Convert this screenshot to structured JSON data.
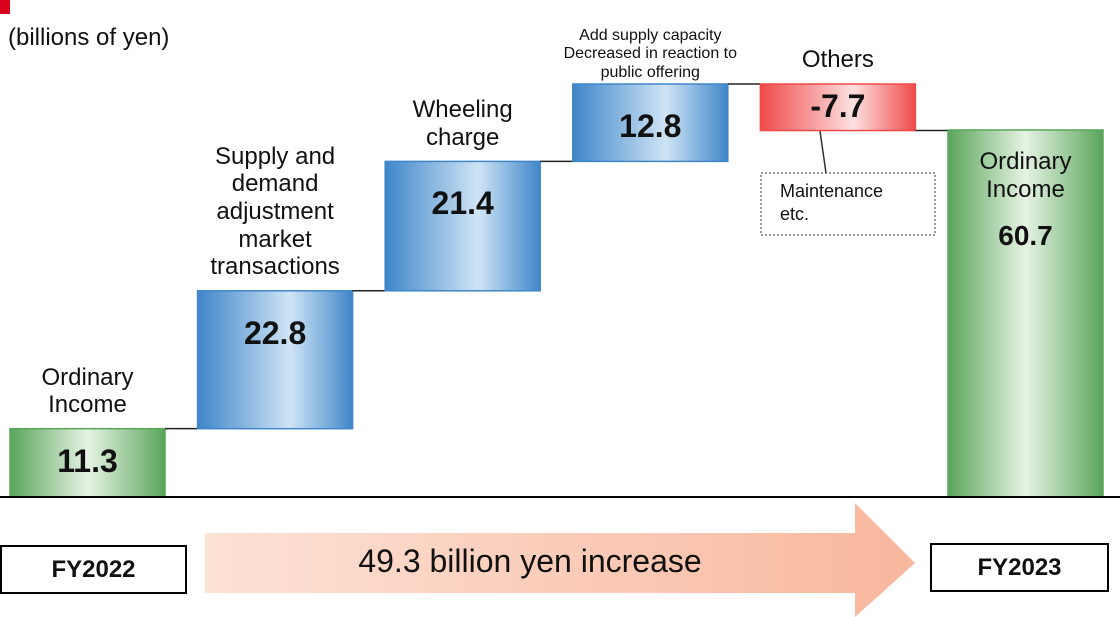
{
  "chart_data": {
    "type": "waterfall",
    "unit_label": "(billions of yen)",
    "categories": [
      "Ordinary\nIncome",
      "Supply and\ndemand\nadjustment\nmarket\ntransactions",
      "Wheeling\ncharge",
      "Add supply capacity\nDecreased in reaction to\npublic offering",
      "Others",
      "Ordinary\nIncome"
    ],
    "values": [
      11.3,
      22.8,
      21.4,
      12.8,
      -7.7,
      60.7
    ],
    "total_color": "#5aa55a",
    "increase_color": "#3f86c9",
    "decrease_color": "#f04a4a",
    "annotation": "Maintenance\netc.",
    "start_label": "FY2022",
    "end_label": "FY2023",
    "change_label": "49.3 billion yen increase"
  }
}
